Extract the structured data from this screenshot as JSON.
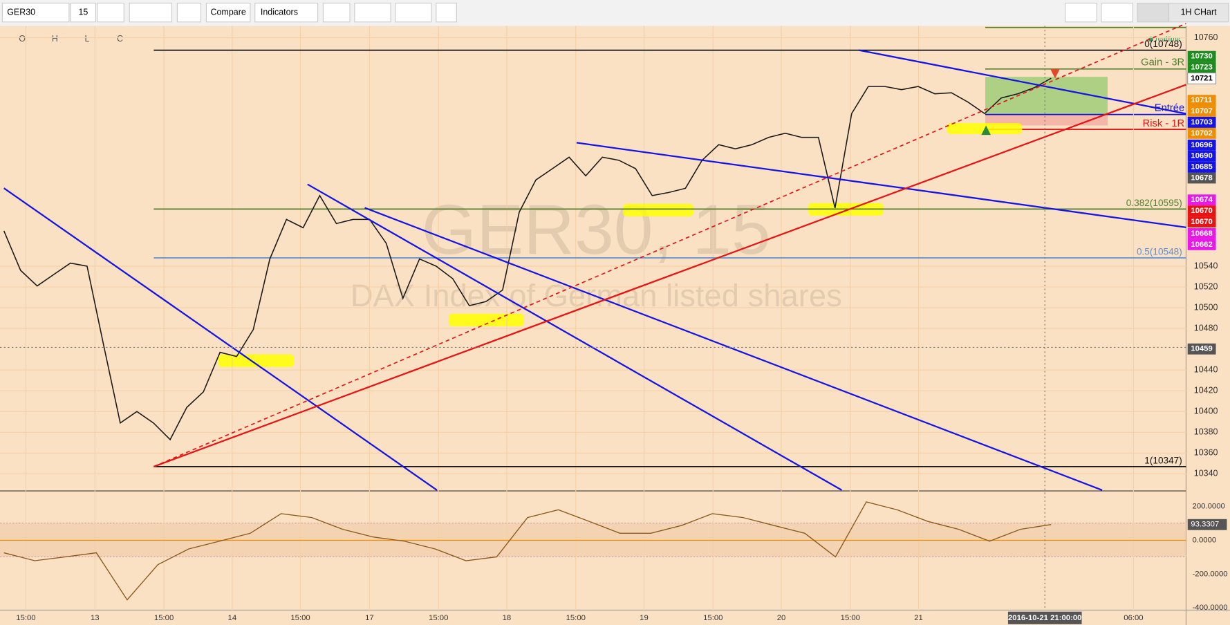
{
  "toolbar": {
    "symbol": "GER30",
    "interval": "15",
    "compare": "Compare",
    "indicators": "Indicators",
    "chart_name": "1H CHart"
  },
  "legend": {
    "o": "O",
    "h": "H",
    "l": "L",
    "c": "C"
  },
  "realtime": "realtime",
  "watermark": {
    "symbol": "GER30, 15",
    "description": "DAX Index of German listed shares"
  },
  "annotations": {
    "gain": "Gain - 3R",
    "entry": "Entrée",
    "risk": "Risk - 1R"
  },
  "fib_levels": [
    {
      "label": "0(10748)",
      "value": 10748,
      "color": "#111111"
    },
    {
      "label": "0.382(10595)",
      "value": 10595,
      "color": "#4f7f2a"
    },
    {
      "label": "0.5(10548)",
      "value": 10548,
      "color": "#5b8fd6"
    },
    {
      "label": "1(10347)",
      "value": 10347,
      "color": "#111111"
    }
  ],
  "price_ticks": [
    10760,
    10540,
    10520,
    10500,
    10480,
    10440,
    10420,
    10400,
    10380,
    10360,
    10340
  ],
  "price_labels": [
    {
      "text": "10730",
      "color": "#1e8c1e"
    },
    {
      "text": "10723",
      "color": "#1e8c1e"
    },
    {
      "text": "10721",
      "color": "#ffffff"
    },
    {
      "text": "10711",
      "color": "#f08c00"
    },
    {
      "text": "10707",
      "color": "#f08c00"
    },
    {
      "text": "10703",
      "color": "#1414e6"
    },
    {
      "text": "10702",
      "color": "#f08c00"
    },
    {
      "text": "10696",
      "color": "#1414e6"
    },
    {
      "text": "10690",
      "color": "#1414e6"
    },
    {
      "text": "10685",
      "color": "#1414e6"
    },
    {
      "text": "10678",
      "color": "#555555"
    },
    {
      "text": "10674",
      "color": "#e619e6"
    },
    {
      "text": "10670",
      "color": "#e61414"
    },
    {
      "text": "10670",
      "color": "#e61414"
    },
    {
      "text": "10668",
      "color": "#e619e6"
    },
    {
      "text": "10662",
      "color": "#e619e6"
    },
    {
      "text": "10459",
      "color": "#555555"
    }
  ],
  "price_closes": [
    10574,
    10536,
    10521,
    10532,
    10543,
    10540,
    10464,
    10389,
    10400,
    10389,
    10373,
    10404,
    10419,
    10457,
    10453,
    10479,
    10547,
    10585,
    10577,
    10608,
    10581,
    10585,
    10585,
    10562,
    10509,
    10547,
    10540,
    10528,
    10502,
    10506,
    10517,
    10592,
    10623,
    10634,
    10645,
    10627,
    10645,
    10642,
    10634,
    10608,
    10611,
    10615,
    10642,
    10657,
    10653,
    10657,
    10664,
    10668,
    10664,
    10664,
    10596,
    10687,
    10713,
    10713,
    10710,
    10713,
    10706,
    10707,
    10698,
    10687,
    10702,
    10706,
    10712,
    10721
  ],
  "oscillator": {
    "ticks": [
      {
        "value": 200,
        "label": "200.0000"
      },
      {
        "value": 0,
        "label": "0.0000"
      },
      {
        "value": -200,
        "label": "-200.0000"
      },
      {
        "value": -400,
        "label": "-400.0000"
      }
    ],
    "current": {
      "value": 93.3307,
      "label": "93.3307"
    },
    "values": [
      -74,
      -121,
      -98,
      -74,
      -353,
      -144,
      -51,
      -5,
      42,
      158,
      135,
      65,
      19,
      -5,
      -51,
      -121,
      -98,
      135,
      181,
      112,
      42,
      42,
      88,
      158,
      135,
      88,
      42,
      -98,
      228,
      181,
      112,
      65,
      -5,
      65,
      93.3307
    ]
  },
  "time_labels": [
    "15:00",
    "13",
    "15:00",
    "14",
    "15:00",
    "17",
    "15:00",
    "18",
    "15:00",
    "19",
    "15:00",
    "20",
    "15:00",
    "21",
    "06:00"
  ],
  "time_current": "2016-10-21 21:00:00"
}
